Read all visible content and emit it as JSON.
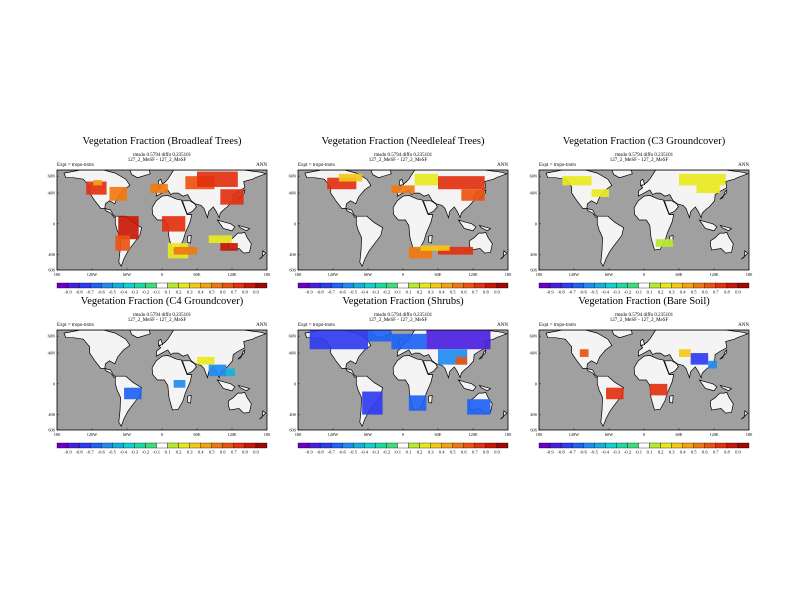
{
  "figure": {
    "colors": {
      "ocean": "#a0a0a0",
      "land": "#f4f4f4",
      "frame": "#000000"
    },
    "panels": [
      {
        "title": "Vegetation Fraction (Broadleaf Trees)",
        "stats": "rmsdo 0.5794 diffo 0.235101",
        "expt": "Expt = tropo-trstrs",
        "run": "127_2_MeSF - 127_2_MeSF",
        "period": "ANN",
        "lat_labels": [
          "60N",
          "40N",
          "0",
          "40S",
          "60S"
        ],
        "lon_labels": [
          "180",
          "120W",
          "60W",
          "0",
          "60E",
          "120E",
          "180"
        ],
        "colorbar_labels": [
          "-0.9",
          "-0.8",
          "-0.7",
          "-0.6",
          "-0.5",
          "-0.4",
          "-0.3",
          "-0.2",
          "-0.1",
          "0.1",
          "0.2",
          "0.3",
          "0.4",
          "0.5",
          "0.6",
          "0.7",
          "0.8",
          "0.9"
        ],
        "patches": [
          {
            "lon": [
              -130,
              -95
            ],
            "lat": [
              38,
              55
            ],
            "level": 0.8
          },
          {
            "lon": [
              -118,
              -103
            ],
            "lat": [
              50,
              57
            ],
            "level": 0.5
          },
          {
            "lon": [
              -90,
              -60
            ],
            "lat": [
              30,
              48
            ],
            "level": 0.6
          },
          {
            "lon": [
              -75,
              -40
            ],
            "lat": [
              -20,
              10
            ],
            "level": 0.85
          },
          {
            "lon": [
              -80,
              -55
            ],
            "lat": [
              -35,
              -15
            ],
            "level": 0.7
          },
          {
            "lon": [
              0,
              40
            ],
            "lat": [
              -10,
              10
            ],
            "level": 0.8
          },
          {
            "lon": [
              10,
              45
            ],
            "lat": [
              -45,
              -25
            ],
            "level": 0.3
          },
          {
            "lon": [
              40,
              90
            ],
            "lat": [
              45,
              62
            ],
            "level": 0.65
          },
          {
            "lon": [
              60,
              130
            ],
            "lat": [
              48,
              68
            ],
            "level": 0.8
          },
          {
            "lon": [
              100,
              140
            ],
            "lat": [
              25,
              45
            ],
            "level": 0.75
          },
          {
            "lon": [
              20,
              60
            ],
            "lat": [
              -40,
              -30
            ],
            "level": 0.6
          },
          {
            "lon": [
              80,
              120
            ],
            "lat": [
              -25,
              -15
            ],
            "level": 0.3
          },
          {
            "lon": [
              100,
              130
            ],
            "lat": [
              -35,
              -25
            ],
            "level": 0.85
          },
          {
            "lon": [
              -20,
              10
            ],
            "lat": [
              40,
              52
            ],
            "level": 0.55
          }
        ]
      },
      {
        "title": "Vegetation Fraction (Needleleaf Trees)",
        "stats": "rmsdo 0.5794 diffo 0.235101",
        "expt": "Expt = tropo-trstrs",
        "run": "127_2_MeSF - 127_2_MeSF",
        "period": "ANN",
        "lat_labels": [
          "60N",
          "40N",
          "0",
          "40S",
          "60S"
        ],
        "lon_labels": [
          "180",
          "120W",
          "60W",
          "0",
          "60E",
          "120E",
          "180"
        ],
        "colorbar_labels": [
          "-0.9",
          "-0.8",
          "-0.7",
          "-0.6",
          "-0.5",
          "-0.4",
          "-0.3",
          "-0.2",
          "-0.1",
          "0.1",
          "0.2",
          "0.3",
          "0.4",
          "0.5",
          "0.6",
          "0.7",
          "0.8",
          "0.9"
        ],
        "patches": [
          {
            "lon": [
              -130,
              -80
            ],
            "lat": [
              45,
              60
            ],
            "level": 0.75
          },
          {
            "lon": [
              -110,
              -70
            ],
            "lat": [
              55,
              65
            ],
            "level": 0.35
          },
          {
            "lon": [
              20,
              60
            ],
            "lat": [
              50,
              65
            ],
            "level": 0.3
          },
          {
            "lon": [
              60,
              140
            ],
            "lat": [
              45,
              62
            ],
            "level": 0.8
          },
          {
            "lon": [
              100,
              140
            ],
            "lat": [
              30,
              45
            ],
            "level": 0.7
          },
          {
            "lon": [
              10,
              50
            ],
            "lat": [
              -45,
              -30
            ],
            "level": 0.55
          },
          {
            "lon": [
              60,
              120
            ],
            "lat": [
              -40,
              -30
            ],
            "level": 0.8
          },
          {
            "lon": [
              30,
              80
            ],
            "lat": [
              -35,
              -28
            ],
            "level": 0.35
          },
          {
            "lon": [
              -20,
              20
            ],
            "lat": [
              40,
              50
            ],
            "level": 0.6
          }
        ]
      },
      {
        "title": "Vegetation Fraction (C3 Groundcover)",
        "stats": "rmsdo 0.5794 diffo 0.235101",
        "expt": "Expt = tropo-trstrs",
        "run": "127_2_MeSF - 127_2_MeSF",
        "period": "ANN",
        "lat_labels": [
          "60N",
          "40N",
          "0",
          "40S",
          "60S"
        ],
        "lon_labels": [
          "180",
          "120W",
          "60W",
          "0",
          "60E",
          "120E",
          "180"
        ],
        "colorbar_labels": [
          "-0.9",
          "-0.8",
          "-0.7",
          "-0.6",
          "-0.5",
          "-0.4",
          "-0.3",
          "-0.2",
          "-0.1",
          "0.1",
          "0.2",
          "0.3",
          "0.4",
          "0.5",
          "0.6",
          "0.7",
          "0.8",
          "0.9"
        ],
        "patches": [
          {
            "lon": [
              -140,
              -90
            ],
            "lat": [
              50,
              62
            ],
            "level": 0.3
          },
          {
            "lon": [
              -90,
              -60
            ],
            "lat": [
              35,
              45
            ],
            "level": 0.25
          },
          {
            "lon": [
              60,
              140
            ],
            "lat": [
              50,
              65
            ],
            "level": 0.3
          },
          {
            "lon": [
              90,
              130
            ],
            "lat": [
              40,
              50
            ],
            "level": 0.25
          },
          {
            "lon": [
              20,
              50
            ],
            "lat": [
              -30,
              -20
            ],
            "level": 0.2
          }
        ]
      },
      {
        "title": "Vegetation Fraction (C4 Groundcover)",
        "stats": "rmsdo 0.5794 diffo 0.235101",
        "expt": "Expt = tropo-trstrs",
        "run": "127_2_MeSF - 127_2_MeSF",
        "period": "ANN",
        "lat_labels": [
          "60N",
          "40N",
          "0",
          "40S",
          "60S"
        ],
        "lon_labels": [
          "180",
          "120W",
          "60W",
          "0",
          "60E",
          "120E",
          "180"
        ],
        "colorbar_labels": [
          "-0.9",
          "-0.8",
          "-0.7",
          "-0.6",
          "-0.5",
          "-0.4",
          "-0.3",
          "-0.2",
          "-0.1",
          "0.1",
          "0.2",
          "0.3",
          "0.4",
          "0.5",
          "0.6",
          "0.7",
          "0.8",
          "0.9"
        ],
        "patches": [
          {
            "lon": [
              -65,
              -35
            ],
            "lat": [
              -20,
              -5
            ],
            "level": -0.6
          },
          {
            "lon": [
              20,
              40
            ],
            "lat": [
              -5,
              5
            ],
            "level": -0.5
          },
          {
            "lon": [
              80,
              110
            ],
            "lat": [
              10,
              25
            ],
            "level": -0.55
          },
          {
            "lon": [
              60,
              90
            ],
            "lat": [
              25,
              35
            ],
            "level": 0.3
          },
          {
            "lon": [
              110,
              125
            ],
            "lat": [
              10,
              20
            ],
            "level": -0.4
          }
        ]
      },
      {
        "title": "Vegetation Fraction (Shrubs)",
        "stats": "rmsdo 0.5794 diffo 0.235101",
        "expt": "Expt = tropo-trstrs",
        "run": "127_2_MeSF - 127_2_MeSF",
        "period": "ANN",
        "lat_labels": [
          "60N",
          "40N",
          "0",
          "40S",
          "60S"
        ],
        "lon_labels": [
          "180",
          "120W",
          "60W",
          "0",
          "60E",
          "120E",
          "180"
        ],
        "colorbar_labels": [
          "-0.9",
          "-0.8",
          "-0.7",
          "-0.6",
          "-0.5",
          "-0.4",
          "-0.3",
          "-0.2",
          "-0.1",
          "0.1",
          "0.2",
          "0.3",
          "0.4",
          "0.5",
          "0.6",
          "0.7",
          "0.8",
          "0.9"
        ],
        "patches": [
          {
            "lon": [
              -160,
              -60
            ],
            "lat": [
              45,
              70
            ],
            "level": -0.7
          },
          {
            "lon": [
              -60,
              -20
            ],
            "lat": [
              55,
              70
            ],
            "level": -0.6
          },
          {
            "lon": [
              -20,
              40
            ],
            "lat": [
              45,
              65
            ],
            "level": -0.65
          },
          {
            "lon": [
              40,
              150
            ],
            "lat": [
              45,
              70
            ],
            "level": -0.8
          },
          {
            "lon": [
              60,
              110
            ],
            "lat": [
              25,
              45
            ],
            "level": -0.5
          },
          {
            "lon": [
              -70,
              -35
            ],
            "lat": [
              -40,
              -10
            ],
            "level": -0.7
          },
          {
            "lon": [
              10,
              40
            ],
            "lat": [
              -35,
              -15
            ],
            "level": -0.6
          },
          {
            "lon": [
              110,
              150
            ],
            "lat": [
              -40,
              -20
            ],
            "level": -0.6
          },
          {
            "lon": [
              90,
              110
            ],
            "lat": [
              25,
              35
            ],
            "level": 0.7
          }
        ]
      },
      {
        "title": "Vegetation Fraction (Bare Soil)",
        "stats": "rmsdo 0.5794 diffo 0.235101",
        "expt": "Expt = tropo-trstrs",
        "run": "127_2_MeSF - 127_2_MeSF",
        "period": "ANN",
        "lat_labels": [
          "60N",
          "40N",
          "0",
          "40S",
          "60S"
        ],
        "lon_labels": [
          "180",
          "120W",
          "60W",
          "0",
          "60E",
          "120E",
          "180"
        ],
        "colorbar_labels": [
          "-0.9",
          "-0.8",
          "-0.7",
          "-0.6",
          "-0.5",
          "-0.4",
          "-0.3",
          "-0.2",
          "-0.1",
          "0.1",
          "0.2",
          "0.3",
          "0.4",
          "0.5",
          "0.6",
          "0.7",
          "0.8",
          "0.9"
        ],
        "patches": [
          {
            "lon": [
              -110,
              -95
            ],
            "lat": [
              35,
              45
            ],
            "level": 0.7
          },
          {
            "lon": [
              -65,
              -35
            ],
            "lat": [
              -20,
              -5
            ],
            "level": 0.8
          },
          {
            "lon": [
              10,
              40
            ],
            "lat": [
              -15,
              0
            ],
            "level": 0.75
          },
          {
            "lon": [
              80,
              110
            ],
            "lat": [
              25,
              40
            ],
            "level": -0.7
          },
          {
            "lon": [
              60,
              80
            ],
            "lat": [
              35,
              45
            ],
            "level": 0.4
          },
          {
            "lon": [
              110,
              125
            ],
            "lat": [
              20,
              30
            ],
            "level": -0.5
          }
        ]
      }
    ]
  }
}
